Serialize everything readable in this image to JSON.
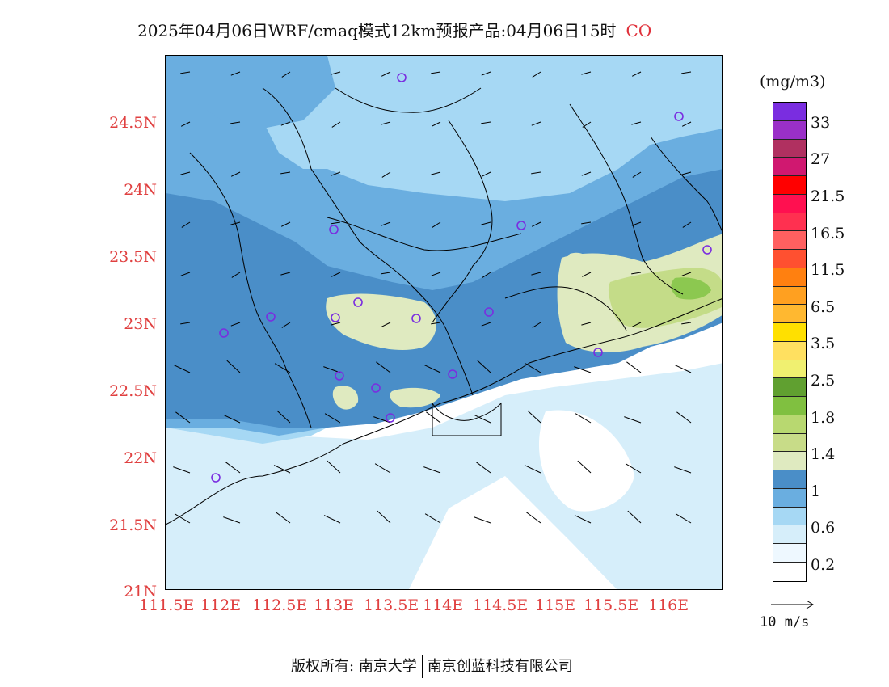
{
  "header": {
    "title": "2025年04月06日WRF/cmaq模式12km预报产品:04月06日15时",
    "pollutant": "CO"
  },
  "map": {
    "lat_labels": [
      "24.5N",
      "24N",
      "23.5N",
      "23N",
      "22.5N",
      "22N",
      "21.5N",
      "21N"
    ],
    "lon_labels": [
      "111.5E",
      "112E",
      "112.5E",
      "113E",
      "113.5E",
      "114E",
      "114.5E",
      "115E",
      "115.5E",
      "116E"
    ],
    "colors": {
      "ocean_white": "#ffffff",
      "level_0_2": "#d6eefa",
      "level_0_6": "#a6d8f4",
      "level_0_6b": "#6aaee0",
      "level_1": "#4a8ec8",
      "level_1b": "#dfeac0",
      "level_1_4": "#c4dc88",
      "level_1_8": "#8cc850",
      "boundary": "#000000",
      "station": "#7a2de0"
    }
  },
  "legend": {
    "unit": "(mg/m3)",
    "colors": [
      "#7a2de0",
      "#9a30c8",
      "#b03060",
      "#d01870",
      "#ff0000",
      "#ff1050",
      "#ff3050",
      "#ff6060",
      "#ff5030",
      "#ff8010",
      "#ffa020",
      "#ffb830",
      "#ffe000",
      "#ffe060",
      "#f0f070",
      "#60a030",
      "#80c040",
      "#b8d870",
      "#c8dc88",
      "#dfeac0",
      "#4a8ec8",
      "#6aaee0",
      "#a6d8f4",
      "#d6eefa",
      "#eef8ff",
      "#ffffff"
    ],
    "ticks": [
      "33",
      "27",
      "21.5",
      "16.5",
      "11.5",
      "6.5",
      "3.5",
      "2.5",
      "1.8",
      "1.4",
      "1",
      "0.6",
      "0.2"
    ],
    "vector_label": "10 m/s"
  },
  "footer": {
    "copyright_label": "版权所有:",
    "org1": "南京大学",
    "org2": "南京创蓝科技有限公司"
  }
}
